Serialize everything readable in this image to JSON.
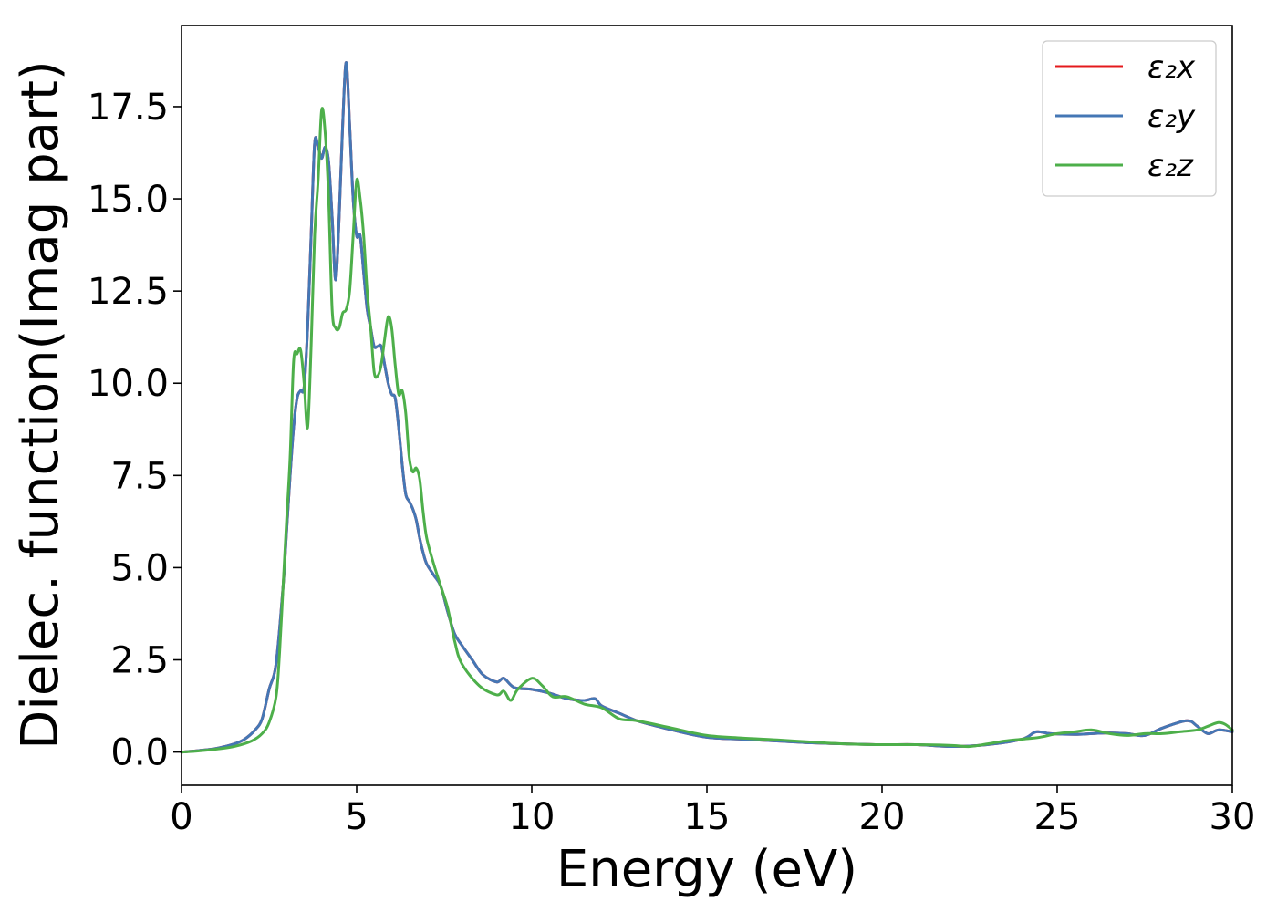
{
  "chart_data": {
    "type": "line",
    "xlabel": "Energy (eV)",
    "ylabel": "Dielec. function(Imag part)",
    "xlim": [
      0,
      30
    ],
    "ylim": [
      -0.9,
      19.7
    ],
    "xticks": [
      0,
      5,
      10,
      15,
      20,
      25,
      30
    ],
    "xtick_labels": [
      "0",
      "5",
      "10",
      "15",
      "20",
      "25",
      "30"
    ],
    "yticks": [
      0.0,
      2.5,
      5.0,
      7.5,
      10.0,
      12.5,
      15.0,
      17.5
    ],
    "ytick_labels": [
      "0.0",
      "2.5",
      "5.0",
      "7.5",
      "10.0",
      "12.5",
      "15.0",
      "17.5"
    ],
    "grid": false,
    "legend_position": "top-right",
    "series": [
      {
        "name": "ε₂x",
        "color": "#e41a1c",
        "x": [
          0,
          0.5,
          1.0,
          1.5,
          1.8,
          2.1,
          2.3,
          2.5,
          2.7,
          2.9,
          3.0,
          3.1,
          3.2,
          3.3,
          3.4,
          3.5,
          3.6,
          3.7,
          3.8,
          3.9,
          4.0,
          4.1,
          4.2,
          4.3,
          4.4,
          4.5,
          4.6,
          4.7,
          4.8,
          4.9,
          5.0,
          5.1,
          5.2,
          5.3,
          5.4,
          5.5,
          5.6,
          5.7,
          5.8,
          5.9,
          6.0,
          6.1,
          6.2,
          6.3,
          6.4,
          6.5,
          6.6,
          6.7,
          6.8,
          6.9,
          7.0,
          7.2,
          7.4,
          7.6,
          7.8,
          8.0,
          8.3,
          8.6,
          9.0,
          9.2,
          9.5,
          10.0,
          10.5,
          11.0,
          11.5,
          11.8,
          12.0,
          12.5,
          13.0,
          13.5,
          14.0,
          15.0,
          16.0,
          17.0,
          18.0,
          19.0,
          20.0,
          21.0,
          22.0,
          23.0,
          24.0,
          24.4,
          24.8,
          25.5,
          26.0,
          26.5,
          27.0,
          27.5,
          28.0,
          28.7,
          29.0,
          29.3,
          29.6,
          30.0
        ],
        "y": [
          0.0,
          0.04,
          0.1,
          0.22,
          0.35,
          0.6,
          0.9,
          1.7,
          2.4,
          4.5,
          6.0,
          7.5,
          8.8,
          9.6,
          9.8,
          9.9,
          11.5,
          14.0,
          16.5,
          16.4,
          16.1,
          16.4,
          16.0,
          14.5,
          12.8,
          14.5,
          17.0,
          18.7,
          17.0,
          15.0,
          14.0,
          14.0,
          13.0,
          12.0,
          11.5,
          11.0,
          11.0,
          11.0,
          10.5,
          10.0,
          9.7,
          9.6,
          8.8,
          7.8,
          7.0,
          6.8,
          6.6,
          6.3,
          5.8,
          5.4,
          5.1,
          4.8,
          4.5,
          3.8,
          3.2,
          2.9,
          2.5,
          2.1,
          1.9,
          2.0,
          1.75,
          1.7,
          1.6,
          1.45,
          1.4,
          1.45,
          1.25,
          1.05,
          0.85,
          0.72,
          0.6,
          0.4,
          0.35,
          0.3,
          0.25,
          0.22,
          0.2,
          0.2,
          0.15,
          0.2,
          0.35,
          0.55,
          0.5,
          0.48,
          0.5,
          0.52,
          0.5,
          0.45,
          0.65,
          0.85,
          0.7,
          0.5,
          0.6,
          0.55
        ]
      },
      {
        "name": "ε₂y",
        "color": "#4477b5",
        "x": [
          0,
          0.5,
          1.0,
          1.5,
          1.8,
          2.1,
          2.3,
          2.5,
          2.7,
          2.9,
          3.0,
          3.1,
          3.2,
          3.3,
          3.4,
          3.5,
          3.6,
          3.7,
          3.8,
          3.9,
          4.0,
          4.1,
          4.2,
          4.3,
          4.4,
          4.5,
          4.6,
          4.7,
          4.8,
          4.9,
          5.0,
          5.1,
          5.2,
          5.3,
          5.4,
          5.5,
          5.6,
          5.7,
          5.8,
          5.9,
          6.0,
          6.1,
          6.2,
          6.3,
          6.4,
          6.5,
          6.6,
          6.7,
          6.8,
          6.9,
          7.0,
          7.2,
          7.4,
          7.6,
          7.8,
          8.0,
          8.3,
          8.6,
          9.0,
          9.2,
          9.5,
          10.0,
          10.5,
          11.0,
          11.5,
          11.8,
          12.0,
          12.5,
          13.0,
          13.5,
          14.0,
          15.0,
          16.0,
          17.0,
          18.0,
          19.0,
          20.0,
          21.0,
          22.0,
          23.0,
          24.0,
          24.4,
          24.8,
          25.5,
          26.0,
          26.5,
          27.0,
          27.5,
          28.0,
          28.7,
          29.0,
          29.3,
          29.6,
          30.0
        ],
        "y": [
          0.0,
          0.04,
          0.1,
          0.22,
          0.35,
          0.6,
          0.9,
          1.7,
          2.4,
          4.5,
          6.0,
          7.5,
          8.8,
          9.6,
          9.8,
          9.9,
          11.5,
          14.0,
          16.5,
          16.4,
          16.1,
          16.4,
          16.0,
          14.5,
          12.8,
          14.5,
          17.0,
          18.7,
          17.0,
          15.0,
          14.0,
          14.0,
          13.0,
          12.0,
          11.5,
          11.0,
          11.0,
          11.0,
          10.5,
          10.0,
          9.7,
          9.6,
          8.8,
          7.8,
          7.0,
          6.8,
          6.6,
          6.3,
          5.8,
          5.4,
          5.1,
          4.8,
          4.5,
          3.8,
          3.2,
          2.9,
          2.5,
          2.1,
          1.9,
          2.0,
          1.75,
          1.7,
          1.6,
          1.45,
          1.4,
          1.45,
          1.25,
          1.05,
          0.85,
          0.72,
          0.6,
          0.4,
          0.35,
          0.3,
          0.25,
          0.22,
          0.2,
          0.2,
          0.15,
          0.2,
          0.35,
          0.55,
          0.5,
          0.48,
          0.5,
          0.52,
          0.5,
          0.45,
          0.65,
          0.85,
          0.7,
          0.5,
          0.6,
          0.55
        ]
      },
      {
        "name": "ε₂z",
        "color": "#4daf4a",
        "x": [
          0,
          0.5,
          1.0,
          1.5,
          2.0,
          2.3,
          2.5,
          2.7,
          2.8,
          2.9,
          3.0,
          3.1,
          3.2,
          3.3,
          3.4,
          3.5,
          3.6,
          3.7,
          3.8,
          3.9,
          4.0,
          4.1,
          4.2,
          4.3,
          4.4,
          4.5,
          4.6,
          4.7,
          4.8,
          4.9,
          5.0,
          5.1,
          5.2,
          5.3,
          5.4,
          5.5,
          5.6,
          5.7,
          5.8,
          5.9,
          6.0,
          6.1,
          6.2,
          6.3,
          6.4,
          6.5,
          6.6,
          6.7,
          6.8,
          6.9,
          7.0,
          7.2,
          7.4,
          7.6,
          7.8,
          8.0,
          8.5,
          9.0,
          9.2,
          9.4,
          9.6,
          10.0,
          10.3,
          10.6,
          11.0,
          11.5,
          12.0,
          12.5,
          13.0,
          14.0,
          15.0,
          16.0,
          17.0,
          18.0,
          19.0,
          20.0,
          21.0,
          22.0,
          22.5,
          23.0,
          23.5,
          24.0,
          24.5,
          25.0,
          25.5,
          26.0,
          26.5,
          27.0,
          27.5,
          28.0,
          28.5,
          29.0,
          29.3,
          29.6,
          29.8,
          30.0
        ],
        "y": [
          0.0,
          0.03,
          0.08,
          0.15,
          0.3,
          0.5,
          0.8,
          1.5,
          2.7,
          4.5,
          6.3,
          8.0,
          10.6,
          10.8,
          10.9,
          10.0,
          8.8,
          11.0,
          14.0,
          15.5,
          17.4,
          16.8,
          15.0,
          12.0,
          11.5,
          11.5,
          11.9,
          12.0,
          12.5,
          14.0,
          15.5,
          15.0,
          14.0,
          12.5,
          11.5,
          10.3,
          10.2,
          10.5,
          11.2,
          11.8,
          11.5,
          10.5,
          9.7,
          9.8,
          9.2,
          8.0,
          7.6,
          7.7,
          7.4,
          6.5,
          5.8,
          5.1,
          4.5,
          3.9,
          3.0,
          2.4,
          1.8,
          1.55,
          1.65,
          1.4,
          1.7,
          2.0,
          1.8,
          1.5,
          1.5,
          1.3,
          1.2,
          0.9,
          0.85,
          0.65,
          0.45,
          0.38,
          0.33,
          0.27,
          0.22,
          0.2,
          0.2,
          0.18,
          0.15,
          0.22,
          0.3,
          0.35,
          0.4,
          0.5,
          0.55,
          0.6,
          0.5,
          0.45,
          0.5,
          0.5,
          0.55,
          0.6,
          0.7,
          0.8,
          0.75,
          0.6
        ]
      }
    ]
  }
}
